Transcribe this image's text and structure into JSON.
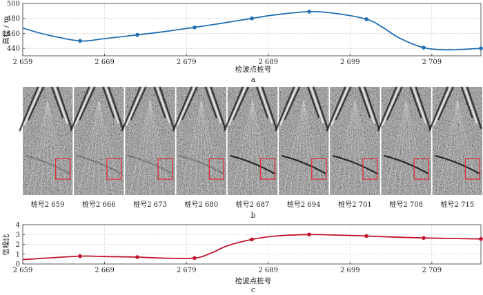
{
  "chart_data": [
    {
      "type": "line",
      "panel_label": "a",
      "title": "",
      "xlabel": "检波点桩号",
      "ylabel": "高程 / m",
      "x_ticks": [
        "2 659",
        "2 669",
        "2 679",
        "2 689",
        "2 699",
        "2 709"
      ],
      "y_ticks": [
        "440",
        "460",
        "480",
        "500"
      ],
      "xlim": [
        2659,
        2715
      ],
      "ylim": [
        430,
        500
      ],
      "grid": true,
      "series": [
        {
          "name": "高程",
          "color": "#1f6fb5",
          "markers": [
            {
              "x": 2666,
              "y": 450
            },
            {
              "x": 2673,
              "y": 458
            },
            {
              "x": 2680,
              "y": 468
            },
            {
              "x": 2687,
              "y": 480
            },
            {
              "x": 2694,
              "y": 489
            },
            {
              "x": 2701,
              "y": 479
            },
            {
              "x": 2708,
              "y": 441
            },
            {
              "x": 2715,
              "y": 440
            }
          ],
          "curve": [
            {
              "x": 2659,
              "y": 467
            },
            {
              "x": 2662,
              "y": 458
            },
            {
              "x": 2666,
              "y": 450
            },
            {
              "x": 2669,
              "y": 453
            },
            {
              "x": 2673,
              "y": 458
            },
            {
              "x": 2676,
              "y": 462
            },
            {
              "x": 2680,
              "y": 468
            },
            {
              "x": 2683,
              "y": 473
            },
            {
              "x": 2687,
              "y": 480
            },
            {
              "x": 2690,
              "y": 485
            },
            {
              "x": 2694,
              "y": 489
            },
            {
              "x": 2697,
              "y": 487
            },
            {
              "x": 2701,
              "y": 479
            },
            {
              "x": 2703,
              "y": 468
            },
            {
              "x": 2705,
              "y": 454
            },
            {
              "x": 2708,
              "y": 441
            },
            {
              "x": 2711,
              "y": 438
            },
            {
              "x": 2715,
              "y": 440
            }
          ]
        }
      ]
    },
    {
      "type": "image-strip",
      "panel_label": "b",
      "gathers": [
        "桩号2 659",
        "桩号2 666",
        "桩号2 673",
        "桩号2 680",
        "桩号2 687",
        "桩号2 694",
        "桩号2 701",
        "桩号2 708",
        "桩号2 715"
      ],
      "highlight_color": "#e0303a"
    },
    {
      "type": "line",
      "panel_label": "c",
      "title": "",
      "xlabel": "检波点桩号",
      "ylabel": "信噪比",
      "x_ticks": [
        "2 659",
        "2 669",
        "2 679",
        "2 689",
        "2 699",
        "2 709"
      ],
      "y_ticks": [
        "0",
        "1",
        "2",
        "3",
        "4"
      ],
      "xlim": [
        2659,
        2715
      ],
      "ylim": [
        0,
        4
      ],
      "grid": true,
      "series": [
        {
          "name": "信噪比",
          "color": "#c0142c",
          "markers": [
            {
              "x": 2666,
              "y": 0.8
            },
            {
              "x": 2673,
              "y": 0.7
            },
            {
              "x": 2680,
              "y": 0.6
            },
            {
              "x": 2687,
              "y": 2.5
            },
            {
              "x": 2694,
              "y": 3.0
            },
            {
              "x": 2701,
              "y": 2.85
            },
            {
              "x": 2708,
              "y": 2.65
            },
            {
              "x": 2715,
              "y": 2.55
            }
          ],
          "curve": [
            {
              "x": 2659,
              "y": 0.45
            },
            {
              "x": 2662,
              "y": 0.6
            },
            {
              "x": 2666,
              "y": 0.8
            },
            {
              "x": 2669,
              "y": 0.76
            },
            {
              "x": 2673,
              "y": 0.7
            },
            {
              "x": 2676,
              "y": 0.6
            },
            {
              "x": 2680,
              "y": 0.6
            },
            {
              "x": 2682,
              "y": 1.1
            },
            {
              "x": 2684,
              "y": 1.85
            },
            {
              "x": 2687,
              "y": 2.5
            },
            {
              "x": 2690,
              "y": 2.85
            },
            {
              "x": 2694,
              "y": 3.0
            },
            {
              "x": 2697,
              "y": 2.95
            },
            {
              "x": 2701,
              "y": 2.85
            },
            {
              "x": 2704,
              "y": 2.75
            },
            {
              "x": 2708,
              "y": 2.65
            },
            {
              "x": 2711,
              "y": 2.6
            },
            {
              "x": 2715,
              "y": 2.55
            }
          ]
        }
      ]
    }
  ]
}
